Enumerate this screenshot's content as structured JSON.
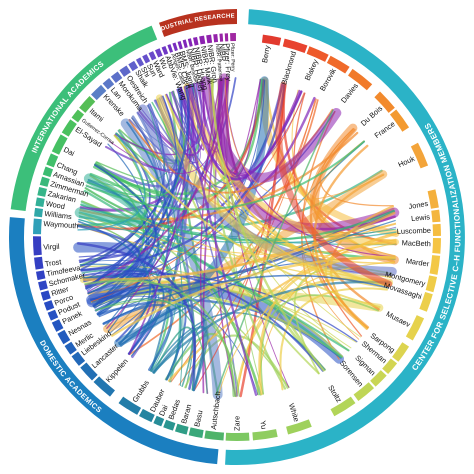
{
  "segments": [
    {
      "label": "CENTER FOR SELECTIVE C–H FUNCTIONALIZATION MEMBERS",
      "color": "#2bb3c7",
      "a0": 3,
      "a1": 183,
      "fs": 8
    },
    {
      "label": "DOMESTIC ACADEMICS",
      "color": "#1b7fc0",
      "a0": 185,
      "a1": 275,
      "fs": 7.5
    },
    {
      "label": "INTERNATIONAL ACADEMICS",
      "color": "#3cbf7a",
      "a0": 277,
      "a1": 338,
      "fs": 7.5
    },
    {
      "label": "INDUSTRIAL RESEARCHERS",
      "color": "#b8321f",
      "a0": 340,
      "a1": 360,
      "fs": 6
    }
  ],
  "nodes": [
    {
      "name": "Berry",
      "angle": 9,
      "color": "#e23a2e"
    },
    {
      "name": "Blacknond",
      "angle": 17,
      "color": "#e8432f"
    },
    {
      "name": "Blakey",
      "angle": 24,
      "color": "#ee5a2b"
    },
    {
      "name": "Borovik",
      "angle": 30,
      "color": "#f06a2a"
    },
    {
      "name": "Davies",
      "angle": 38,
      "color": "#f17a2a"
    },
    {
      "name": "Du Bois",
      "angle": 48,
      "color": "#f28a2d"
    },
    {
      "name": "France",
      "angle": 54,
      "color": "#f39a30"
    },
    {
      "name": "Houk",
      "angle": 66,
      "color": "#f3a43a"
    },
    {
      "name": "Jones",
      "angle": 80,
      "color": "#f4b03c"
    },
    {
      "name": "Lewis",
      "angle": 84,
      "color": "#f4b63e"
    },
    {
      "name": "Luscombe",
      "angle": 88,
      "color": "#f5bd40"
    },
    {
      "name": "MacBeth",
      "angle": 92,
      "color": "#f5c442"
    },
    {
      "name": "Marder",
      "angle": 98,
      "color": "#f3c846"
    },
    {
      "name": "Montgomery",
      "angle": 104,
      "color": "#efcc48"
    },
    {
      "name": "Movassaghi",
      "angle": 108,
      "color": "#eccf4a"
    },
    {
      "name": "Musaev",
      "angle": 117,
      "color": "#e6d24c"
    },
    {
      "name": "Sarpong",
      "angle": 126,
      "color": "#dcd450"
    },
    {
      "name": "Sherman",
      "angle": 130,
      "color": "#d3d552"
    },
    {
      "name": "Sigman",
      "angle": 135,
      "color": "#c9d654"
    },
    {
      "name": "Sorensen",
      "angle": 140,
      "color": "#bfd656"
    },
    {
      "name": "Stoltz",
      "angle": 148,
      "color": "#b2d558"
    },
    {
      "name": "White",
      "angle": 162,
      "color": "#9fd15c"
    },
    {
      "name": "Yu",
      "angle": 172,
      "color": "#8fcd60"
    },
    {
      "name": "Zare",
      "angle": 180,
      "color": "#7cc862"
    },
    {
      "name": "Autschbach",
      "angle": 187,
      "color": "#4fb36a"
    },
    {
      "name": "Basu",
      "angle": 192,
      "color": "#3aa87a"
    },
    {
      "name": "Baran",
      "angle": 196,
      "color": "#2f9d86"
    },
    {
      "name": "Bedas",
      "angle": 200,
      "color": "#2a9590"
    },
    {
      "name": "Dai",
      "angle": 203,
      "color": "#278d98"
    },
    {
      "name": "Dauber",
      "angle": 206,
      "color": "#2585a0"
    },
    {
      "name": "Grubbs",
      "angle": 212,
      "color": "#237da8"
    },
    {
      "name": "Kippelen",
      "angle": 222,
      "color": "#2276b0"
    },
    {
      "name": "Lancaster",
      "angle": 228,
      "color": "#226fb4"
    },
    {
      "name": "Liebeskind",
      "angle": 233,
      "color": "#2268b8"
    },
    {
      "name": "Merlic",
      "angle": 236,
      "color": "#2262bb"
    },
    {
      "name": "Nesnas",
      "angle": 240,
      "color": "#235cbe"
    },
    {
      "name": "Panek",
      "angle": 244,
      "color": "#2456c0"
    },
    {
      "name": "Podust",
      "angle": 247,
      "color": "#2651c2"
    },
    {
      "name": "Porco",
      "angle": 250,
      "color": "#284cc3"
    },
    {
      "name": "Ritter",
      "angle": 253,
      "color": "#2b48c4"
    },
    {
      "name": "Schomaker",
      "angle": 256,
      "color": "#2e45c4"
    },
    {
      "name": "Timofeeva",
      "angle": 259,
      "color": "#3142c4"
    },
    {
      "name": "Trost",
      "angle": 262,
      "color": "#3440c3"
    },
    {
      "name": "Virgil",
      "angle": 267,
      "color": "#373ec2"
    },
    {
      "name": "Waymouth",
      "angle": 274,
      "color": "#2fa0b8"
    },
    {
      "name": "Williams",
      "angle": 277,
      "color": "#30a8a8"
    },
    {
      "name": "Wood",
      "angle": 280,
      "color": "#33b098"
    },
    {
      "name": "Zakarian",
      "angle": 283,
      "color": "#36b589"
    },
    {
      "name": "Zimmerman",
      "angle": 286,
      "color": "#39b97c"
    },
    {
      "name": "Amassian",
      "angle": 289,
      "color": "#3cbd72"
    },
    {
      "name": "Chang",
      "angle": 292,
      "color": "#41bf6a"
    },
    {
      "name": "Dai",
      "angle": 297,
      "color": "#46c063"
    },
    {
      "name": "El-Sayad",
      "angle": 304,
      "color": "#4ac15e"
    },
    {
      "name": "Gutierrez-Correa",
      "angle": 307,
      "color": "#4fc05a"
    },
    {
      "name": "Itami",
      "angle": 311,
      "color": "#55be56"
    },
    {
      "name": "Krenske",
      "angle": 317,
      "color": "#5a7fc6"
    },
    {
      "name": "Lan",
      "angle": 320,
      "color": "#5b78c8"
    },
    {
      "name": "Morokuma",
      "angle": 323,
      "color": "#5c70c9"
    },
    {
      "name": "Oestreich",
      "angle": 326,
      "color": "#5e68ca"
    },
    {
      "name": "Shaik",
      "angle": 329,
      "color": "#6060cb"
    },
    {
      "name": "Shi",
      "angle": 331,
      "color": "#6358cb"
    },
    {
      "name": "Sun",
      "angle": 333,
      "color": "#6650cb"
    },
    {
      "name": "Ward",
      "angle": 335,
      "color": "#6a48ca"
    },
    {
      "name": "Wu",
      "angle": 337,
      "color": "#6e40c8"
    },
    {
      "name": "AbbVie: Wang",
      "angle": 339,
      "color": "#7038c5"
    },
    {
      "name": "Amgen: Caille",
      "angle": 340.5,
      "color": "#7432c2"
    },
    {
      "name": "BMS: Chen",
      "angle": 342,
      "color": "#782dbf"
    },
    {
      "name": "BMS: Jiang",
      "angle": 343.5,
      "color": "#7c29bc"
    },
    {
      "name": "NIBR: Benedikt",
      "angle": 345,
      "color": "#8027b9"
    },
    {
      "name": "NIBR: Hedley",
      "angle": 346.5,
      "color": "#8425b6"
    },
    {
      "name": "NIBR: Huang",
      "angle": 348,
      "color": "#8823b3"
    },
    {
      "name": "NIBR: Malik",
      "angle": 350,
      "color": "#8c22b0"
    },
    {
      "name": "NIBR: Groh",
      "angle": 352,
      "color": "#9022ad"
    },
    {
      "name": "NIBR: Patterson",
      "angle": 354,
      "color": "#9422aa"
    },
    {
      "name": "NIBR",
      "angle": 355.5,
      "color": "#9823a7"
    },
    {
      "name": "Pfizer: Frey",
      "angle": 357,
      "color": "#9c25a4"
    },
    {
      "name": "Pfizer: Perry",
      "angle": 358.5,
      "color": "#a028a1"
    }
  ]
}
